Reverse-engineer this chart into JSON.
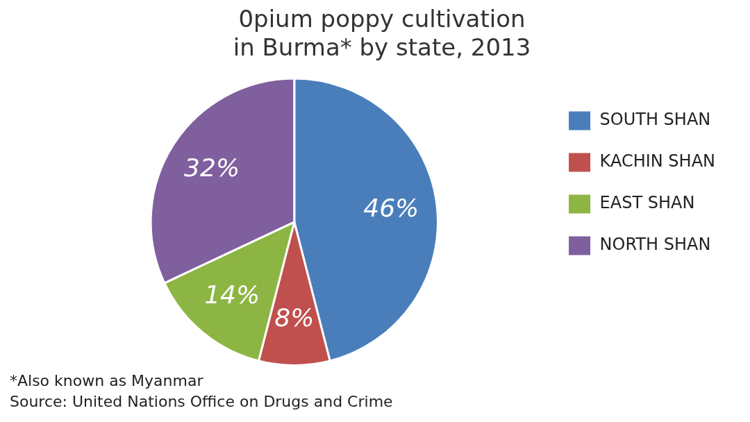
{
  "chart_data": {
    "type": "pie",
    "title": "0pium poppy cultivation\nin Burma* by state, 2013",
    "categories": [
      "SOUTH SHAN",
      "KACHIN SHAN",
      "EAST SHAN",
      "NORTH SHAN"
    ],
    "values": [
      46,
      8,
      14,
      32
    ],
    "value_labels": [
      "46%",
      "8%",
      "14%",
      "32%"
    ],
    "colors": [
      "#4a7ebb",
      "#c0504d",
      "#8db543",
      "#7f5f9e"
    ],
    "legend": "right",
    "annotations": [
      "*Also known as Myanmar",
      "Source: United Nations Office on Drugs and Crime"
    ]
  }
}
